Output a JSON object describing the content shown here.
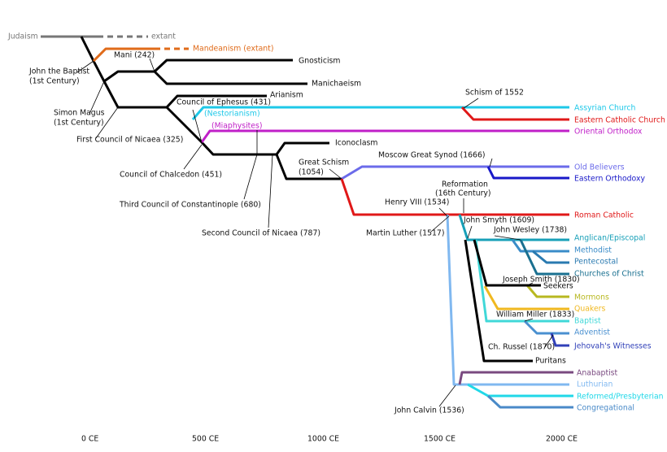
{
  "labels": [
    "Judaism",
    "extant",
    "Mandeanism (extant)",
    "Mani (242)",
    "Gnosticism",
    "Manichaeism",
    "John the Baptist",
    "(1st Century)",
    "Simon Magus",
    "(1st Century)",
    "Arianism",
    "Council of Ephesus (431)",
    "(Nestorianism)",
    "(Miaphysites)",
    "Schism of 1552",
    "Assyrian Church",
    "Eastern Catholic Church",
    "Oriental Orthodox",
    "First Council of Nicaea (325)",
    "Iconoclasm",
    "Council of Chalcedon (451)",
    "Great Schism",
    "(1054)",
    "Moscow Great Synod (1666)",
    "Old Believers",
    "Eastern Orthodoxy",
    "Third Council of Constantinople (680)",
    "Second Council of Nicaea (787)",
    "Reformation",
    "(16th Century)",
    "Henry VIII (1534)",
    "Roman Catholic",
    "Martin Luther (1517)",
    "John Smyth (1609)",
    "John Wesley (1738)",
    "Anglican/Episcopal",
    "Methodist",
    "Pentecostal",
    "Churches of Christ",
    "Joseph Smith (1830)",
    "Seekers",
    "Mormons",
    "Quakers",
    "William Miller (1833)",
    "Baptist",
    "Adventist",
    "Ch. Russel (1870)",
    "Jehovah's Witnesses",
    "Puritans",
    "Anabaptist",
    "Luthurian",
    "Reformed/Presbyterian",
    "John Calvin (1536)",
    "Congregational"
  ],
  "axis": [
    "0 CE",
    "500 CE",
    "1000 CE",
    "1500 CE",
    "2000 CE"
  ]
}
